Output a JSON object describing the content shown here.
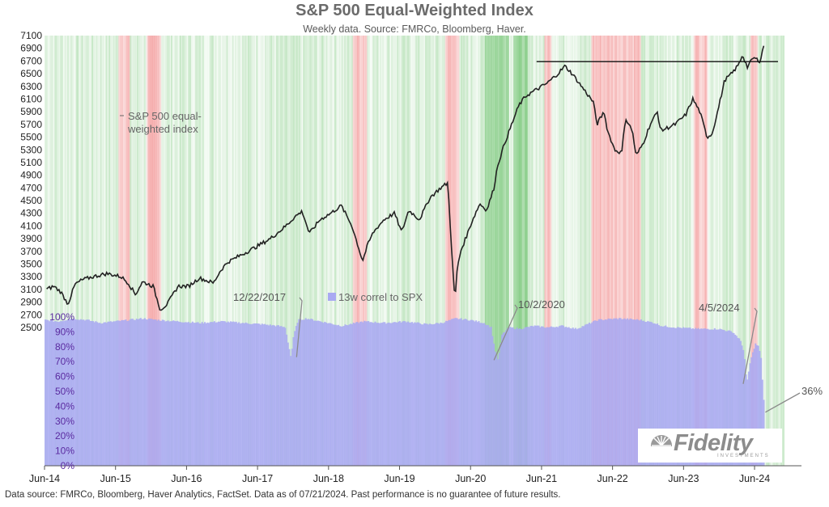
{
  "chart_data": {
    "type": "line",
    "title": "S&P 500 Equal-Weighted Index",
    "subtitle": "Weekly data.  Source: FMRCo, Bloomberg, Haver.",
    "xlabel": "",
    "ylabel": "",
    "x_ticks": [
      "Jun-14",
      "Jun-15",
      "Jun-16",
      "Jun-17",
      "Jun-18",
      "Jun-19",
      "Jun-20",
      "Jun-21",
      "Jun-22",
      "Jun-23",
      "Jun-24"
    ],
    "y_ticks_left": [
      "7100",
      "6900",
      "6700",
      "6500",
      "6300",
      "6100",
      "5900",
      "5700",
      "5500",
      "5300",
      "5100",
      "4900",
      "4700",
      "4500",
      "4300",
      "4100",
      "3900",
      "3700",
      "3500",
      "3300",
      "3100",
      "2900",
      "2700",
      "2500"
    ],
    "y_ticks_corr": [
      "100%",
      "90%",
      "80%",
      "70%",
      "60%",
      "50%",
      "40%",
      "30%",
      "20%",
      "10%",
      "0%"
    ],
    "ylim_index": [
      2500,
      7100
    ],
    "ylim_corr": [
      0,
      100
    ],
    "xlim_year": [
      2014.42,
      2024.83
    ],
    "horizontal_line": 6690,
    "series": [
      {
        "name": "S&P 500 equal-weighted index",
        "color": "#222222",
        "x": [
          2014.45,
          2014.55,
          2014.65,
          2014.75,
          2014.85,
          2014.95,
          2015.1,
          2015.3,
          2015.5,
          2015.6,
          2015.7,
          2015.8,
          2015.95,
          2016.05,
          2016.15,
          2016.3,
          2016.45,
          2016.6,
          2016.8,
          2016.9,
          2017.0,
          2017.2,
          2017.4,
          2017.6,
          2017.8,
          2017.95,
          2018.05,
          2018.15,
          2018.3,
          2018.45,
          2018.6,
          2018.75,
          2018.9,
          2018.97,
          2019.05,
          2019.2,
          2019.35,
          2019.45,
          2019.55,
          2019.7,
          2019.85,
          2020.0,
          2020.1,
          2020.15,
          2020.2,
          2020.23,
          2020.28,
          2020.35,
          2020.45,
          2020.55,
          2020.65,
          2020.75,
          2020.8,
          2020.9,
          2021.0,
          2021.1,
          2021.2,
          2021.35,
          2021.5,
          2021.65,
          2021.75,
          2021.85,
          2021.95,
          2022.05,
          2022.15,
          2022.2,
          2022.3,
          2022.35,
          2022.45,
          2022.55,
          2022.6,
          2022.7,
          2022.75,
          2022.85,
          2022.95,
          2023.05,
          2023.1,
          2023.2,
          2023.3,
          2023.45,
          2023.55,
          2023.65,
          2023.75,
          2023.82,
          2023.9,
          2024.0,
          2024.1,
          2024.2,
          2024.25,
          2024.32,
          2024.4,
          2024.5,
          2024.55
        ],
        "values": [
          3100,
          3150,
          3060,
          2870,
          3180,
          3250,
          3300,
          3350,
          3300,
          3200,
          3020,
          3220,
          3150,
          2780,
          2870,
          3150,
          3150,
          3280,
          3200,
          3400,
          3530,
          3650,
          3770,
          3900,
          4080,
          4250,
          4330,
          3980,
          4200,
          4300,
          4420,
          4100,
          3550,
          3800,
          4000,
          4200,
          4300,
          4000,
          4350,
          4200,
          4550,
          4700,
          4780,
          3800,
          2900,
          3400,
          3700,
          3900,
          4200,
          4450,
          4350,
          4700,
          5050,
          5400,
          5700,
          6000,
          6150,
          6250,
          6350,
          6500,
          6620,
          6500,
          6350,
          6200,
          6050,
          5700,
          5900,
          5600,
          5300,
          5250,
          5800,
          5600,
          5200,
          5400,
          5700,
          5900,
          5600,
          5650,
          5700,
          5850,
          6100,
          5900,
          5500,
          5550,
          5900,
          6400,
          6500,
          6650,
          6800,
          6600,
          6750,
          6700,
          6950
        ]
      },
      {
        "name": "13w correl to SPX",
        "color": "#a9a9f2",
        "x": [
          2014.42,
          2014.6,
          2014.8,
          2015.0,
          2015.2,
          2015.4,
          2015.6,
          2015.8,
          2016.0,
          2016.3,
          2016.6,
          2016.9,
          2017.2,
          2017.5,
          2017.7,
          2017.8,
          2017.85,
          2017.88,
          2017.92,
          2017.98,
          2018.1,
          2018.3,
          2018.6,
          2018.9,
          2019.2,
          2019.5,
          2019.8,
          2020.0,
          2020.2,
          2020.4,
          2020.6,
          2020.7,
          2020.75,
          2020.8,
          2020.85,
          2020.95,
          2021.1,
          2021.3,
          2021.5,
          2021.7,
          2021.9,
          2022.2,
          2022.5,
          2022.8,
          2023.0,
          2023.1,
          2023.3,
          2023.6,
          2023.9,
          2024.1,
          2024.2,
          2024.26,
          2024.3,
          2024.35,
          2024.42,
          2024.47,
          2024.5,
          2024.55
        ],
        "values": [
          98,
          97,
          99,
          98,
          96,
          97,
          98,
          99,
          98,
          97,
          96,
          97,
          96,
          95,
          94,
          93,
          80,
          73,
          88,
          98,
          99,
          97,
          94,
          97,
          96,
          97,
          95,
          96,
          99,
          98,
          96,
          93,
          78,
          71,
          88,
          93,
          92,
          94,
          93,
          94,
          92,
          98,
          99,
          98,
          96,
          94,
          93,
          92,
          92,
          90,
          85,
          77,
          55,
          70,
          82,
          80,
          72,
          36
        ]
      }
    ],
    "legend_index": "S&P 500 equal-\nweighted index",
    "legend_index_line1": "S&P 500 equal-",
    "legend_index_line2": "weighted index",
    "legend_corr": "13w correl to SPX",
    "annotations": [
      {
        "text": "12/22/2017",
        "x": 2017.97,
        "y_corr": 73
      },
      {
        "text": "10/2/2020",
        "x": 2020.75,
        "y_corr": 71
      },
      {
        "text": "4/5/2024",
        "x": 2024.26,
        "y_corr": 55
      },
      {
        "text": "36%",
        "x": 2024.55,
        "y_corr": 36
      }
    ],
    "background_bands": {
      "description": "vertical bands colored by correlation regime",
      "green": "#7bc87b",
      "red": "#f08080"
    }
  },
  "footnote": "Data source: FMRCo, Bloomberg, Haver Analytics, FactSet. Data as of 07/21/2024. Past performance is no guarantee of future results.",
  "logo": {
    "name": "Fidelity",
    "sub": "INVESTMENTS"
  }
}
